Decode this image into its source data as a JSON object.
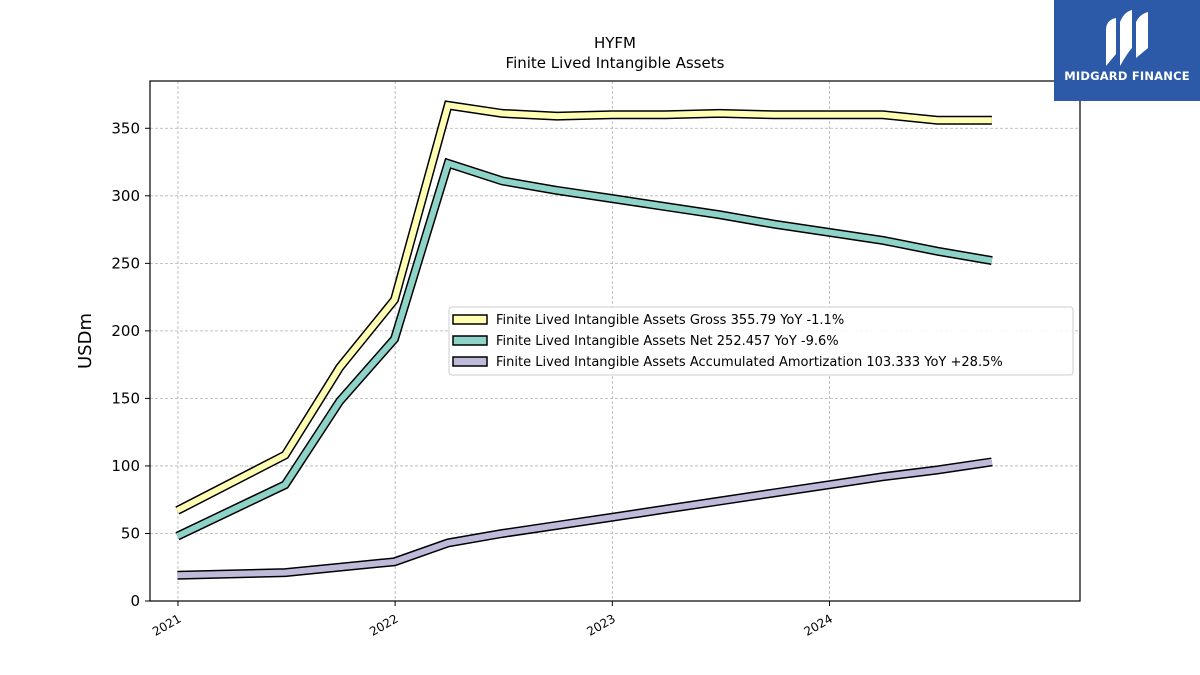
{
  "chart_data": {
    "type": "line",
    "title": "HYFM",
    "subtitle": "Finite Lived Intangible Assets",
    "ylabel": "USDm",
    "xlabel": "",
    "ylim": [
      0,
      385
    ],
    "yticks": [
      0,
      50,
      100,
      150,
      200,
      250,
      300,
      350
    ],
    "xticks": [
      "2021",
      "2022",
      "2023",
      "2024"
    ],
    "grid": true,
    "legend_position": "center-right",
    "x": [
      "2020-12-31",
      "2021-06-30",
      "2021-09-30",
      "2021-12-31",
      "2022-03-31",
      "2022-06-30",
      "2022-09-30",
      "2022-12-31",
      "2023-03-31",
      "2023-06-30",
      "2023-09-30",
      "2023-12-31",
      "2024-03-31",
      "2024-06-30",
      "2024-09-30"
    ],
    "series": [
      {
        "name": "Finite Lived Intangible Assets Gross",
        "legend_label": "Finite Lived Intangible Assets Gross  355.79 YoY -1.1%",
        "color": "#ffffb3",
        "values": [
          67,
          108,
          173,
          223,
          367,
          361,
          359,
          360,
          360,
          361,
          360,
          360,
          360,
          356,
          356
        ]
      },
      {
        "name": "Finite Lived Intangible Assets Net",
        "legend_label": "Finite Lived Intangible Assets Net  252.457 YoY -9.6%",
        "color": "#8dd3c7",
        "values": [
          48,
          86,
          148,
          194,
          324,
          311,
          304,
          298,
          292,
          286,
          279,
          273,
          267,
          259,
          252
        ]
      },
      {
        "name": "Finite Lived Intangible Assets Accumulated Amortization",
        "legend_label": "Finite Lived Intangible Assets Accumulated Amortization  103.333 YoY +28.5%",
        "color": "#bebada",
        "values": [
          19,
          21,
          25,
          29,
          43,
          50,
          56,
          62,
          68,
          74,
          80,
          86,
          92,
          97,
          103
        ]
      }
    ]
  },
  "logo": {
    "text": "MIDGARD FINANCE",
    "background": "#2c5aa8"
  }
}
